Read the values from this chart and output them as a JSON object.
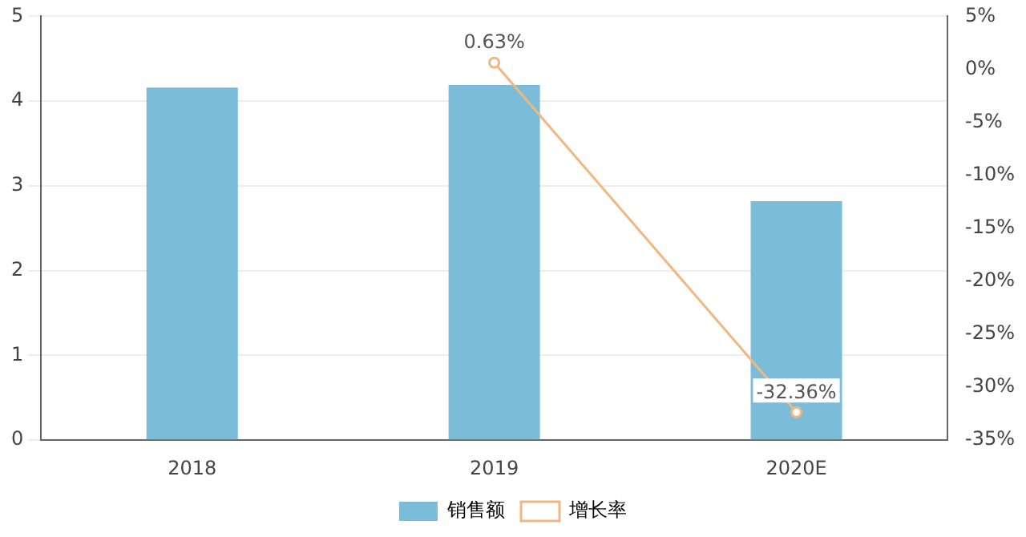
{
  "chart_data": {
    "type": "bar",
    "categories": [
      "2018",
      "2019",
      "2020E"
    ],
    "series": [
      {
        "name": "销售额",
        "color": "#7bbcd8",
        "values": [
          4.16,
          4.19,
          2.82
        ]
      },
      {
        "name": "增长率",
        "type": "line",
        "axis": "y2",
        "color": "#f0b880",
        "values": [
          null,
          0.63,
          -32.36
        ],
        "value_labels": [
          null,
          "0.63%",
          "-32.36%"
        ]
      }
    ],
    "ylim": [
      0,
      5
    ],
    "yticks": [
      0,
      1,
      2,
      3,
      4,
      5
    ],
    "y2lim": [
      -35,
      5
    ],
    "y2ticks": [
      {
        "value": 5,
        "label": "5%"
      },
      {
        "value": 0,
        "label": "0%"
      },
      {
        "value": -5,
        "label": "-5%"
      },
      {
        "value": -10,
        "label": "-10%"
      },
      {
        "value": -15,
        "label": "-15%"
      },
      {
        "value": -20,
        "label": "-20%"
      },
      {
        "value": -25,
        "label": "-25%"
      },
      {
        "value": -30,
        "label": "-30%"
      },
      {
        "value": -35,
        "label": "-35%"
      }
    ],
    "grid": "y",
    "legend": "bottom",
    "marker": "circle",
    "line_style": "solid"
  }
}
